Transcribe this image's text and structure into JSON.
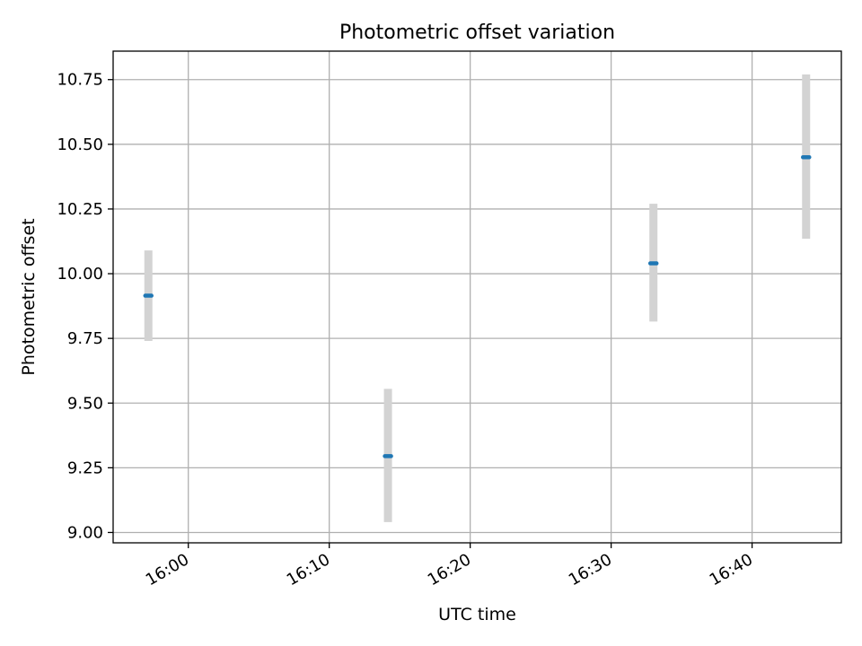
{
  "chart_data": {
    "type": "scatter",
    "title": "Photometric offset variation",
    "xlabel": "UTC time",
    "ylabel": "Photometric offset",
    "xlim": [
      "15:54:40",
      "16:46:20"
    ],
    "ylim": [
      8.96,
      10.86
    ],
    "x_ticks": [
      "16:00",
      "16:10",
      "16:20",
      "16:30",
      "16:40"
    ],
    "y_ticks": [
      "9.00",
      "9.25",
      "9.50",
      "9.75",
      "10.00",
      "10.25",
      "10.50",
      "10.75"
    ],
    "grid": true,
    "points": [
      {
        "x": "15:57:10",
        "y": 9.915,
        "y_low": 9.74,
        "y_high": 10.09
      },
      {
        "x": "16:14:10",
        "y": 9.295,
        "y_low": 9.04,
        "y_high": 9.555
      },
      {
        "x": "16:33:00",
        "y": 10.04,
        "y_low": 9.815,
        "y_high": 10.27
      },
      {
        "x": "16:43:50",
        "y": 10.45,
        "y_low": 10.135,
        "y_high": 10.77
      }
    ],
    "colors": {
      "marker": "#1f77b4",
      "errorbar": "#d3d3d3",
      "grid": "#b0b0b0"
    }
  }
}
